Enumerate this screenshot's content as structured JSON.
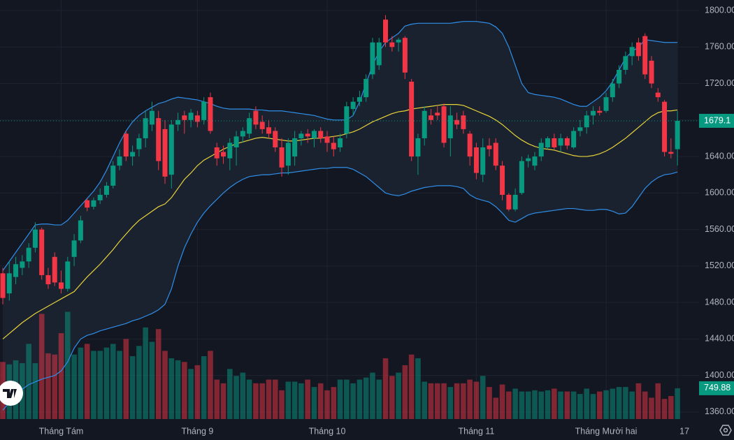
{
  "chart_data": {
    "type": "candlestick",
    "categories": [
      null,
      null,
      null,
      null,
      null,
      null,
      null,
      null,
      null,
      "Tháng Tám",
      null,
      null,
      null,
      null,
      null,
      null,
      null,
      null,
      null,
      null,
      null,
      null,
      null,
      null,
      null,
      null,
      null,
      null,
      null,
      null,
      "Tháng 9",
      null,
      null,
      null,
      null,
      null,
      null,
      null,
      null,
      null,
      null,
      null,
      null,
      null,
      null,
      null,
      null,
      null,
      null,
      null,
      "Tháng 10",
      null,
      null,
      null,
      null,
      null,
      null,
      null,
      null,
      null,
      null,
      null,
      null,
      null,
      null,
      null,
      null,
      null,
      null,
      null,
      null,
      null,
      null,
      "Tháng 11",
      null,
      null,
      null,
      null,
      null,
      null,
      null,
      null,
      null,
      null,
      null,
      null,
      null,
      null,
      null,
      null,
      null,
      null,
      null,
      "Tháng Mười hai",
      null,
      null,
      null,
      null,
      null,
      null,
      null,
      null,
      null,
      null,
      "17"
    ],
    "ohlc": [
      [
        1512,
        1518,
        1478,
        1485
      ],
      [
        1490,
        1525,
        1482,
        1512
      ],
      [
        1508,
        1530,
        1500,
        1522
      ],
      [
        1518,
        1532,
        1510,
        1525
      ],
      [
        1525,
        1545,
        1518,
        1540
      ],
      [
        1540,
        1568,
        1535,
        1560
      ],
      [
        1560,
        1562,
        1505,
        1510
      ],
      [
        1510,
        1518,
        1495,
        1500
      ],
      [
        1530,
        1535,
        1498,
        1502
      ],
      [
        1502,
        1515,
        1490,
        1495
      ],
      [
        1495,
        1530,
        1492,
        1525
      ],
      [
        1530,
        1555,
        1520,
        1548
      ],
      [
        1548,
        1575,
        1545,
        1570
      ],
      [
        1592,
        1594,
        1580,
        1584
      ],
      [
        1585,
        1595,
        1582,
        1592
      ],
      [
        1592,
        1605,
        1588,
        1598
      ],
      [
        1598,
        1612,
        1595,
        1608
      ],
      [
        1608,
        1635,
        1605,
        1630
      ],
      [
        1630,
        1648,
        1625,
        1640
      ],
      [
        1665,
        1668,
        1635,
        1640
      ],
      [
        1640,
        1652,
        1630,
        1645
      ],
      [
        1648,
        1665,
        1640,
        1660
      ],
      [
        1660,
        1690,
        1650,
        1682
      ],
      [
        1675,
        1700,
        1668,
        1690
      ],
      [
        1682,
        1690,
        1625,
        1635
      ],
      [
        1670,
        1680,
        1610,
        1618
      ],
      [
        1620,
        1680,
        1605,
        1675
      ],
      [
        1675,
        1688,
        1668,
        1680
      ],
      [
        1685,
        1690,
        1665,
        1680
      ],
      [
        1680,
        1692,
        1672,
        1688
      ],
      [
        1685,
        1690,
        1672,
        1678
      ],
      [
        1680,
        1705,
        1675,
        1700
      ],
      [
        1705,
        1710,
        1665,
        1668
      ],
      [
        1650,
        1655,
        1630,
        1638
      ],
      [
        1645,
        1652,
        1632,
        1640
      ],
      [
        1638,
        1660,
        1625,
        1655
      ],
      [
        1650,
        1668,
        1630,
        1662
      ],
      [
        1662,
        1672,
        1655,
        1668
      ],
      [
        1665,
        1688,
        1660,
        1682
      ],
      [
        1690,
        1695,
        1670,
        1675
      ],
      [
        1678,
        1685,
        1665,
        1670
      ],
      [
        1672,
        1680,
        1660,
        1665
      ],
      [
        1668,
        1672,
        1645,
        1650
      ],
      [
        1650,
        1660,
        1618,
        1628
      ],
      [
        1630,
        1660,
        1620,
        1655
      ],
      [
        1640,
        1668,
        1630,
        1660
      ],
      [
        1660,
        1668,
        1652,
        1665
      ],
      [
        1665,
        1670,
        1655,
        1662
      ],
      [
        1660,
        1670,
        1650,
        1668
      ],
      [
        1668,
        1672,
        1655,
        1660
      ],
      [
        1662,
        1668,
        1645,
        1655
      ],
      [
        1655,
        1662,
        1640,
        1648
      ],
      [
        1650,
        1665,
        1645,
        1660
      ],
      [
        1665,
        1700,
        1660,
        1695
      ],
      [
        1692,
        1705,
        1685,
        1700
      ],
      [
        1700,
        1712,
        1695,
        1705
      ],
      [
        1705,
        1730,
        1700,
        1725
      ],
      [
        1730,
        1770,
        1725,
        1765
      ],
      [
        1740,
        1770,
        1735,
        1765
      ],
      [
        1790,
        1795,
        1760,
        1765
      ],
      [
        1765,
        1772,
        1755,
        1760
      ],
      [
        1765,
        1770,
        1755,
        1768
      ],
      [
        1770,
        1772,
        1725,
        1732
      ],
      [
        1722,
        1725,
        1635,
        1640
      ],
      [
        1640,
        1665,
        1620,
        1660
      ],
      [
        1660,
        1695,
        1652,
        1690
      ],
      [
        1685,
        1692,
        1675,
        1680
      ],
      [
        1688,
        1695,
        1680,
        1685
      ],
      [
        1695,
        1698,
        1650,
        1655
      ],
      [
        1660,
        1695,
        1640,
        1685
      ],
      [
        1680,
        1688,
        1670,
        1675
      ],
      [
        1685,
        1690,
        1665,
        1670
      ],
      [
        1665,
        1668,
        1630,
        1640
      ],
      [
        1650,
        1655,
        1615,
        1622
      ],
      [
        1620,
        1660,
        1612,
        1650
      ],
      [
        1652,
        1660,
        1640,
        1648
      ],
      [
        1655,
        1660,
        1625,
        1630
      ],
      [
        1630,
        1635,
        1592,
        1598
      ],
      [
        1598,
        1600,
        1580,
        1582
      ],
      [
        1582,
        1605,
        1580,
        1598
      ],
      [
        1600,
        1640,
        1598,
        1635
      ],
      [
        1635,
        1642,
        1628,
        1638
      ],
      [
        1630,
        1645,
        1625,
        1640
      ],
      [
        1640,
        1660,
        1635,
        1655
      ],
      [
        1650,
        1662,
        1648,
        1660
      ],
      [
        1660,
        1665,
        1648,
        1650
      ],
      [
        1652,
        1665,
        1645,
        1660
      ],
      [
        1660,
        1662,
        1648,
        1652
      ],
      [
        1650,
        1672,
        1648,
        1668
      ],
      [
        1668,
        1680,
        1662,
        1672
      ],
      [
        1672,
        1690,
        1665,
        1685
      ],
      [
        1685,
        1695,
        1675,
        1690
      ],
      [
        1690,
        1695,
        1685,
        1688
      ],
      [
        1690,
        1710,
        1688,
        1705
      ],
      [
        1705,
        1725,
        1700,
        1720
      ],
      [
        1720,
        1740,
        1715,
        1735
      ],
      [
        1735,
        1755,
        1730,
        1750
      ],
      [
        1750,
        1765,
        1740,
        1760
      ],
      [
        1765,
        1770,
        1745,
        1750
      ],
      [
        1772,
        1775,
        1725,
        1730
      ],
      [
        1745,
        1750,
        1715,
        1720
      ],
      [
        1710,
        1715,
        1700,
        1705
      ],
      [
        1700,
        1702,
        1640,
        1645
      ],
      [
        1645,
        1660,
        1638,
        1643
      ],
      [
        1648,
        1690,
        1630,
        1679.1
      ]
    ],
    "volume": [
      1390,
      1330,
      1430,
      1360,
      1830,
      1360,
      2560,
      1600,
      1570,
      2090,
      2610,
      1570,
      1740,
      1830,
      1660,
      1660,
      1740,
      1830,
      1660,
      1950,
      1530,
      1780,
      2230,
      1880,
      2190,
      1660,
      1480,
      1430,
      1390,
      1220,
      1310,
      1530,
      1660,
      960,
      870,
      1220,
      1050,
      1130,
      960,
      870,
      870,
      960,
      960,
      700,
      910,
      910,
      870,
      960,
      780,
      870,
      700,
      780,
      960,
      960,
      870,
      960,
      1010,
      1130,
      960,
      1480,
      1050,
      1130,
      1310,
      1570,
      1480,
      910,
      870,
      870,
      870,
      780,
      870,
      870,
      960,
      910,
      1050,
      780,
      520,
      840,
      670,
      740,
      670,
      670,
      700,
      670,
      700,
      740,
      670,
      670,
      670,
      610,
      740,
      610,
      670,
      700,
      740,
      780,
      780,
      670,
      870,
      670,
      520,
      870,
      490,
      560,
      749.88
    ],
    "bollinger": {
      "upper": [
        1515,
        1525,
        1535,
        1545,
        1555,
        1565,
        1566,
        1566,
        1565,
        1565,
        1570,
        1578,
        1586,
        1594,
        1602,
        1612,
        1625,
        1640,
        1655,
        1668,
        1678,
        1685,
        1690,
        1694,
        1698,
        1700,
        1703,
        1705,
        1704,
        1703,
        1702,
        1700,
        1698,
        1695,
        1693,
        1692,
        1692,
        1692,
        1692,
        1691,
        1691,
        1690,
        1690,
        1690,
        1689,
        1688,
        1687,
        1686,
        1685,
        1683,
        1681,
        1680,
        1680,
        1680,
        1685,
        1700,
        1720,
        1740,
        1755,
        1765,
        1770,
        1775,
        1783,
        1785,
        1786,
        1786,
        1786,
        1786,
        1786,
        1786,
        1787,
        1788,
        1788,
        1788,
        1787,
        1786,
        1782,
        1775,
        1760,
        1740,
        1720,
        1710,
        1708,
        1707,
        1706,
        1705,
        1703,
        1700,
        1697,
        1695,
        1695,
        1700,
        1705,
        1712,
        1722,
        1735,
        1748,
        1755,
        1760,
        1768,
        1767,
        1766,
        1765,
        1765,
        1765
      ],
      "basis": [
        1440,
        1446,
        1452,
        1458,
        1463,
        1468,
        1472,
        1476,
        1480,
        1484,
        1488,
        1492,
        1500,
        1508,
        1515,
        1522,
        1530,
        1538,
        1547,
        1555,
        1563,
        1570,
        1575,
        1580,
        1585,
        1588,
        1595,
        1605,
        1615,
        1622,
        1630,
        1636,
        1640,
        1644,
        1648,
        1651,
        1654,
        1656,
        1658,
        1660,
        1661,
        1660,
        1659,
        1658,
        1657,
        1657,
        1658,
        1659,
        1660,
        1660,
        1661,
        1662,
        1663,
        1665,
        1667,
        1670,
        1674,
        1678,
        1681,
        1684,
        1687,
        1689,
        1690,
        1692,
        1693,
        1694,
        1695,
        1696,
        1697,
        1697,
        1697,
        1696,
        1693,
        1690,
        1687,
        1684,
        1680,
        1675,
        1669,
        1663,
        1658,
        1654,
        1651,
        1649,
        1648,
        1647,
        1645,
        1643,
        1641,
        1640,
        1640,
        1641,
        1643,
        1646,
        1650,
        1655,
        1660,
        1666,
        1672,
        1678,
        1684,
        1688,
        1690,
        1690,
        1691
      ],
      "lower": [
        1362,
        1370,
        1378,
        1385,
        1390,
        1393,
        1396,
        1398,
        1400,
        1405,
        1415,
        1430,
        1440,
        1444,
        1446,
        1449,
        1451,
        1453,
        1455,
        1457,
        1460,
        1462,
        1465,
        1468,
        1472,
        1478,
        1495,
        1520,
        1540,
        1555,
        1568,
        1578,
        1586,
        1593,
        1600,
        1606,
        1611,
        1615,
        1618,
        1619,
        1620,
        1620,
        1621,
        1622,
        1622,
        1623,
        1624,
        1625,
        1626,
        1627,
        1627,
        1628,
        1628,
        1628,
        1626,
        1622,
        1618,
        1612,
        1606,
        1600,
        1598,
        1597,
        1599,
        1602,
        1604,
        1606,
        1607,
        1608,
        1608,
        1608,
        1607,
        1605,
        1598,
        1594,
        1592,
        1590,
        1585,
        1578,
        1570,
        1568,
        1572,
        1576,
        1578,
        1579,
        1580,
        1581,
        1582,
        1583,
        1583,
        1582,
        1581,
        1581,
        1582,
        1582,
        1580,
        1577,
        1578,
        1585,
        1595,
        1605,
        1612,
        1617,
        1620,
        1621,
        1623
      ],
      "band_color": "#2f8fe8",
      "basis_color": "#e8d33a",
      "fill": "#1a2230"
    },
    "up_color": "#089981",
    "down_color": "#f23645",
    "ylim": [
      1352.3,
      1811.5
    ],
    "volume_ylim": [
      0,
      10200
    ],
    "yticks": [
      {
        "value": 1360,
        "label": "1360.00"
      },
      {
        "value": 1400,
        "label": "1400.00"
      },
      {
        "value": 1440,
        "label": "1440.00"
      },
      {
        "value": 1480,
        "label": "1480.00"
      },
      {
        "value": 1520,
        "label": "1520.00"
      },
      {
        "value": 1560,
        "label": "1560.00"
      },
      {
        "value": 1600,
        "label": "1600.00"
      },
      {
        "value": 1640,
        "label": "1640.00"
      },
      {
        "value": 1680,
        "label": "1680.00"
      },
      {
        "value": 1720,
        "label": "1720.00"
      },
      {
        "value": 1760,
        "label": "1760.00"
      },
      {
        "value": 1800,
        "label": "1800.00"
      }
    ],
    "grid": true
  }
}
